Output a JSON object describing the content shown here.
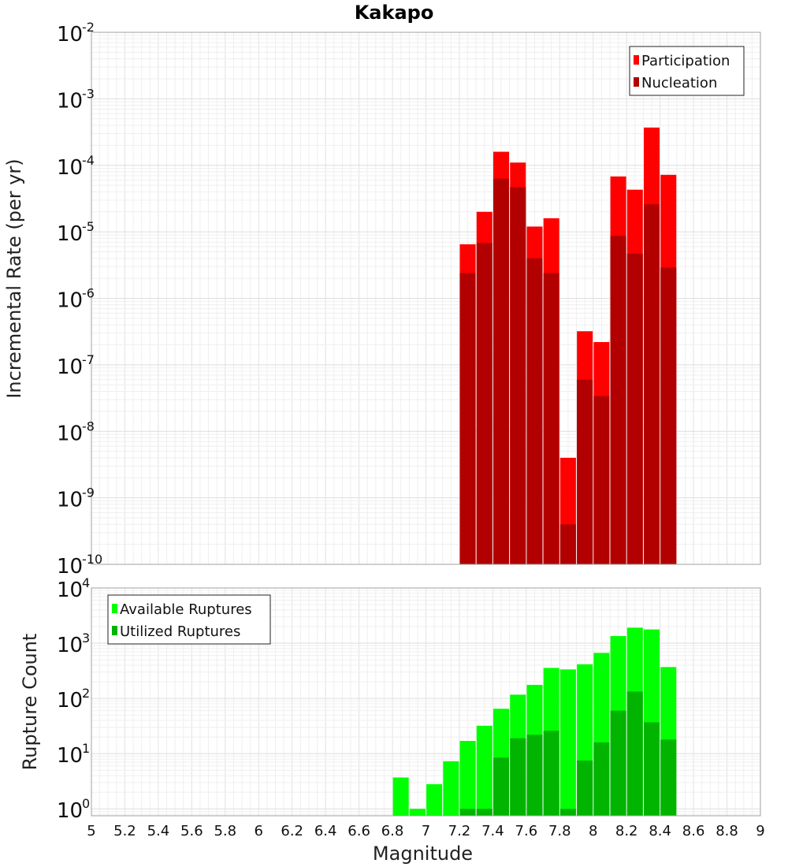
{
  "chart_data": [
    {
      "type": "bar",
      "title": "Kakapo",
      "xlabel": "",
      "ylabel": "Incremental Rate (per yr)",
      "xlim": [
        5,
        9
      ],
      "ylim": [
        1e-10,
        0.01
      ],
      "yscale": "log",
      "grid": true,
      "legend_position": "top-right",
      "x": [
        7.25,
        7.35,
        7.45,
        7.55,
        7.65,
        7.75,
        7.85,
        7.95,
        8.05,
        8.15,
        8.25,
        8.35,
        8.45
      ],
      "series": [
        {
          "name": "Participation",
          "color": "#ff0000",
          "values": [
            6.5e-06,
            2e-05,
            0.00016,
            0.00011,
            1.2e-05,
            1.6e-05,
            4e-09,
            3.2e-07,
            2.2e-07,
            6.8e-05,
            4.3e-05,
            0.00037,
            7.2e-05
          ]
        },
        {
          "name": "Nucleation",
          "color": "#b20000",
          "values": [
            2.4e-06,
            6.8e-06,
            6.3e-05,
            4.7e-05,
            4e-06,
            2.4e-06,
            4e-10,
            6e-08,
            3.4e-08,
            8.7e-06,
            4.7e-06,
            2.6e-05,
            2.9e-06
          ]
        }
      ],
      "yticks": [
        {
          "base": "10",
          "exp": "-2",
          "value": 0.01
        },
        {
          "base": "10",
          "exp": "-3",
          "value": 0.001
        },
        {
          "base": "10",
          "exp": "-4",
          "value": 0.0001
        },
        {
          "base": "10",
          "exp": "-5",
          "value": 1e-05
        },
        {
          "base": "10",
          "exp": "-6",
          "value": 1e-06
        },
        {
          "base": "10",
          "exp": "-7",
          "value": 1e-07
        },
        {
          "base": "10",
          "exp": "-8",
          "value": 1e-08
        },
        {
          "base": "10",
          "exp": "-9",
          "value": 1e-09
        },
        {
          "base": "10",
          "exp": "-10",
          "value": 1e-10
        }
      ]
    },
    {
      "type": "bar",
      "title": "",
      "xlabel": "Magnitude",
      "ylabel": "Rupture Count",
      "xlim": [
        5,
        9
      ],
      "ylim": [
        0.75,
        10000
      ],
      "yscale": "log",
      "grid": true,
      "legend_position": "top-left",
      "x": [
        6.85,
        6.95,
        7.05,
        7.15,
        7.25,
        7.35,
        7.45,
        7.55,
        7.65,
        7.75,
        7.85,
        7.95,
        8.05,
        8.15,
        8.25,
        8.35,
        8.45
      ],
      "series": [
        {
          "name": "Available Ruptures",
          "color": "#00ff00",
          "values": [
            3.7,
            1,
            2.8,
            7.3,
            17,
            32,
            65,
            117,
            176,
            357,
            335,
            416,
            668,
            1345,
            1910,
            1775,
            370
          ]
        },
        {
          "name": "Utilized Ruptures",
          "color": "#00b400",
          "values": [
            0,
            0,
            0,
            0,
            1,
            1,
            8.5,
            19,
            22,
            26,
            1,
            7.5,
            16,
            60,
            133,
            37,
            18
          ]
        }
      ],
      "yticks": [
        {
          "base": "10",
          "exp": "4",
          "value": 10000
        },
        {
          "base": "10",
          "exp": "3",
          "value": 1000
        },
        {
          "base": "10",
          "exp": "2",
          "value": 100
        },
        {
          "base": "10",
          "exp": "1",
          "value": 10
        },
        {
          "base": "10",
          "exp": "0",
          "value": 1
        }
      ],
      "xticks": [
        "5",
        "5.2",
        "5.4",
        "5.6",
        "5.8",
        "6",
        "6.2",
        "6.4",
        "6.6",
        "6.8",
        "7",
        "7.2",
        "7.4",
        "7.6",
        "7.8",
        "8",
        "8.2",
        "8.4",
        "8.6",
        "8.8",
        "9"
      ]
    }
  ]
}
